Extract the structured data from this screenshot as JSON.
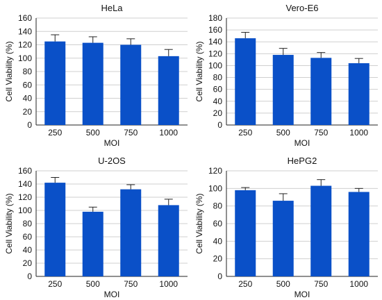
{
  "colors": {
    "bar": "#0a50c8",
    "grid": "#cfcfcf",
    "axis": "#222222"
  },
  "chart_data": [
    {
      "type": "bar",
      "title": "HeLa",
      "xlabel": "MOI",
      "ylabel": "Cell Viability (%)",
      "categories": [
        "250",
        "500",
        "750",
        "1000"
      ],
      "values": [
        125,
        123,
        120,
        103
      ],
      "errors": [
        10,
        9,
        9,
        10
      ],
      "ylim": [
        0,
        160
      ],
      "yticks": [
        0,
        20,
        40,
        60,
        80,
        100,
        120,
        140,
        160
      ],
      "grid": true
    },
    {
      "type": "bar",
      "title": "Vero-E6",
      "xlabel": "MOI",
      "ylabel": "Cell Viability (%)",
      "categories": [
        "250",
        "500",
        "750",
        "1000"
      ],
      "values": [
        146,
        118,
        113,
        104
      ],
      "errors": [
        10,
        11,
        9,
        8
      ],
      "ylim": [
        0,
        180
      ],
      "yticks": [
        0,
        20,
        40,
        60,
        80,
        100,
        120,
        140,
        160,
        180
      ],
      "grid": true
    },
    {
      "type": "bar",
      "title": "U-2OS",
      "xlabel": "MOI",
      "ylabel": "Cell Viability (%)",
      "categories": [
        "250",
        "500",
        "750",
        "1000"
      ],
      "values": [
        142,
        98,
        132,
        108
      ],
      "errors": [
        8,
        7,
        7,
        9
      ],
      "ylim": [
        0,
        160
      ],
      "yticks": [
        0,
        20,
        40,
        60,
        80,
        100,
        120,
        140,
        160
      ],
      "grid": true
    },
    {
      "type": "bar",
      "title": "HePG2",
      "xlabel": "MOI",
      "ylabel": "Cell Viability (%)",
      "categories": [
        "250",
        "500",
        "750",
        "1000"
      ],
      "values": [
        98,
        86,
        103,
        96
      ],
      "errors": [
        3,
        8,
        7,
        4
      ],
      "ylim": [
        0,
        120
      ],
      "yticks": [
        0,
        20,
        40,
        60,
        80,
        100,
        120
      ],
      "grid": true
    }
  ]
}
